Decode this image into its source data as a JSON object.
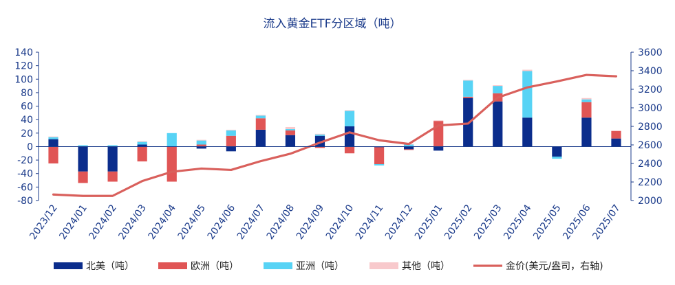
{
  "chart_data": {
    "type": "bar",
    "title": "流入黄金ETF分区域（吨）",
    "categories": [
      "2023/12",
      "2024/01",
      "2024/02",
      "2024/03",
      "2024/04",
      "2024/05",
      "2024/06",
      "2024/07",
      "2024/08",
      "2024/09",
      "2024/10",
      "2024/11",
      "2024/12",
      "2025/01",
      "2025/02",
      "2025/03",
      "2025/04",
      "2025/05",
      "2025/06",
      "2025/07"
    ],
    "stacked": true,
    "series": [
      {
        "name": "北美（吨）",
        "kind": "bar",
        "color": "#0b2d8c",
        "values": [
          11,
          -37,
          -37,
          3,
          0,
          -3,
          -7,
          25,
          17,
          16,
          30,
          -1,
          -4,
          -6,
          72,
          67,
          43,
          -15,
          43,
          12
        ]
      },
      {
        "name": "欧洲（吨）",
        "kind": "bar",
        "color": "#e05555",
        "values": [
          -25,
          -17,
          -15,
          -22,
          -52,
          3,
          16,
          17,
          7,
          -2,
          -10,
          -25,
          -1,
          38,
          2,
          12,
          0,
          0,
          23,
          11
        ]
      },
      {
        "name": "亚洲（吨）",
        "kind": "bar",
        "color": "#57d3f5",
        "values": [
          3,
          2,
          2,
          4,
          20,
          6,
          8,
          4,
          2,
          2,
          23,
          -2,
          3,
          0,
          24,
          11,
          69,
          -3,
          4,
          0
        ]
      },
      {
        "name": "其他（吨）",
        "kind": "bar",
        "color": "#f8c9cc",
        "values": [
          1,
          0,
          0,
          1,
          0,
          1,
          1,
          1,
          3,
          1,
          1,
          0,
          1,
          1,
          1,
          1,
          2,
          0,
          2,
          1
        ]
      },
      {
        "name": "金价(美元/盎司，右轴)",
        "kind": "line",
        "axis": "right",
        "color": "#d9605c",
        "values": [
          2065,
          2050,
          2050,
          2210,
          2310,
          2345,
          2330,
          2425,
          2505,
          2625,
          2735,
          2650,
          2610,
          2810,
          2830,
          3110,
          3220,
          3285,
          3355,
          3340
        ]
      }
    ],
    "yaxis_left": {
      "min": -80,
      "max": 140,
      "step": 20,
      "ticks": [
        "-80",
        "-60",
        "-40",
        "-20",
        "0",
        "20",
        "40",
        "60",
        "80",
        "100",
        "120",
        "140"
      ]
    },
    "yaxis_right": {
      "min": 2000,
      "max": 3600,
      "step": 200,
      "ticks": [
        "2000",
        "2200",
        "2400",
        "2600",
        "2800",
        "3000",
        "3200",
        "3400",
        "3600"
      ]
    },
    "axis_color": "#1a3a8a",
    "legend_position": "bottom",
    "grid": false
  }
}
